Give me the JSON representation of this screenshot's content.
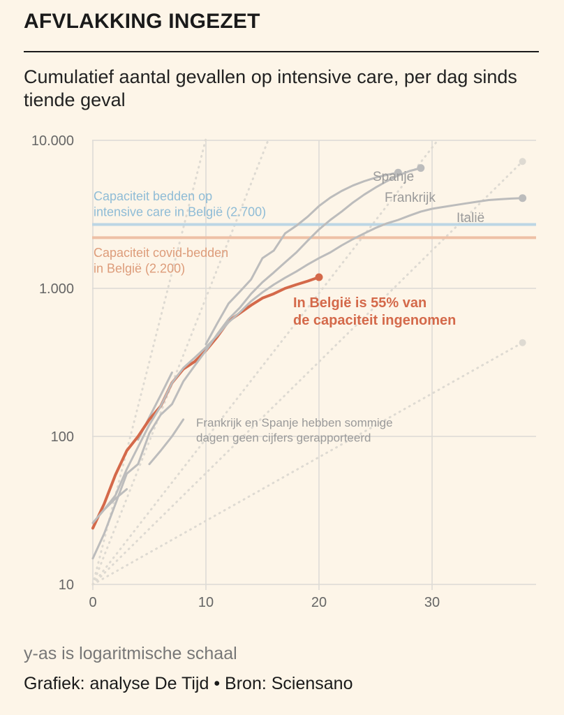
{
  "header": {
    "headline": "AFVLAKKING INGEZET",
    "subtitle": "Cumulatief aantal gevallen op intensive care, per dag sinds tiende geval"
  },
  "footer": {
    "note": "y-as is logaritmische schaal",
    "source": "Grafiek: analyse De Tijd • Bron: Sciensano"
  },
  "colors": {
    "background": "#fdf5e8",
    "belgium": "#d4694a",
    "comparison": "#bcbcbc",
    "doubling_lines": "#dedad2",
    "capacity_total": "#bcd6e4",
    "capacity_covid": "#eec0a6",
    "grid": "#dcdad5"
  },
  "chart_data": {
    "type": "line",
    "title": "AFVLAKKING INGEZET",
    "subtitle": "Cumulatief aantal gevallen op intensive care, per dag sinds tiende geval",
    "xlabel": "",
    "ylabel": "",
    "xlim": [
      0,
      39
    ],
    "ylim": [
      10,
      10000
    ],
    "y_scale": "log",
    "x_ticks": [
      0,
      10,
      20,
      30
    ],
    "y_ticks": [
      {
        "value": 10,
        "label": "10"
      },
      {
        "value": 100,
        "label": "100"
      },
      {
        "value": 1000,
        "label": "1.000"
      },
      {
        "value": 10000,
        "label": "10.000"
      }
    ],
    "grid": true,
    "series": [
      {
        "name": "In België",
        "highlight": true,
        "x": [
          0,
          1,
          2,
          3,
          4,
          5,
          6,
          7,
          8,
          9,
          10,
          11,
          12,
          13,
          14,
          15,
          16,
          17,
          18,
          19,
          20
        ],
        "y": [
          24,
          35,
          55,
          80,
          100,
          130,
          160,
          230,
          285,
          320,
          380,
          470,
          600,
          680,
          770,
          860,
          920,
          1000,
          1060,
          1120,
          1190
        ]
      },
      {
        "name": "Spanje",
        "x": [
          10,
          11,
          12,
          13,
          14,
          15,
          16,
          17,
          18,
          19,
          20,
          21,
          22,
          23,
          24,
          25,
          26,
          27
        ],
        "y": [
          420,
          580,
          790,
          950,
          1150,
          1600,
          1800,
          2350,
          2650,
          3050,
          3600,
          4100,
          4550,
          4950,
          5300,
          5600,
          5850,
          6050
        ]
      },
      {
        "name": "Frankrijk",
        "x": [
          0,
          1,
          2,
          3,
          4,
          5,
          6,
          7,
          8,
          9,
          10,
          11,
          12,
          13,
          14,
          15,
          16,
          17,
          18,
          19,
          20,
          21,
          22,
          23,
          24,
          25,
          26,
          27,
          28,
          29
        ],
        "y": [
          15,
          22,
          35,
          56,
          65,
          105,
          140,
          165,
          235,
          300,
          380,
          490,
          620,
          740,
          920,
          1100,
          1280,
          1500,
          1750,
          2100,
          2500,
          2900,
          3300,
          3800,
          4300,
          4800,
          5300,
          5800,
          6200,
          6500
        ]
      },
      {
        "name": "Italië",
        "x": [
          0,
          1,
          2,
          3,
          4,
          5,
          6,
          7,
          8,
          9,
          10,
          11,
          12,
          13,
          14,
          15,
          16,
          17,
          18,
          19,
          20,
          21,
          22,
          23,
          24,
          25,
          26,
          27,
          28,
          29,
          30,
          31,
          32,
          33,
          34,
          35,
          36,
          37,
          38
        ],
        "y": [
          26,
          32,
          40,
          60,
          85,
          120,
          160,
          230,
          290,
          340,
          400,
          480,
          590,
          690,
          820,
          940,
          1060,
          1180,
          1300,
          1450,
          1600,
          1750,
          1950,
          2150,
          2350,
          2560,
          2750,
          2900,
          3100,
          3300,
          3450,
          3550,
          3650,
          3750,
          3850,
          3950,
          4000,
          4040,
          4070
        ]
      }
    ],
    "fragments": [
      {
        "note": "Frankrijk en Spanje hebben sommige dagen geen cijfers gerapporteerd",
        "x": [
          0,
          1,
          2,
          3
        ],
        "y": [
          26,
          32,
          38,
          44
        ]
      },
      {
        "x": [
          5,
          6,
          7,
          8
        ],
        "y": [
          65,
          80,
          100,
          130
        ]
      },
      {
        "x": [
          4,
          5,
          6,
          7
        ],
        "y": [
          95,
          135,
          190,
          270
        ]
      }
    ],
    "reference_lines": [
      {
        "name": "Capaciteit bedden op intensive care in België (2.700)",
        "value": 2700
      },
      {
        "name": "Capaciteit covid-bedden in België (2.200)",
        "value": 2200
      }
    ],
    "doubling_lines": [
      {
        "x": [
          0,
          10
        ],
        "y": [
          10,
          10240
        ]
      },
      {
        "x": [
          0,
          15.5
        ],
        "y": [
          10,
          10000
        ]
      },
      {
        "x": [
          0,
          30.5
        ],
        "y": [
          10,
          10000
        ]
      },
      {
        "x": [
          0,
          38
        ],
        "y": [
          10,
          7200
        ]
      },
      {
        "x": [
          0,
          38
        ],
        "y": [
          10,
          430
        ]
      }
    ],
    "annotations": [
      {
        "text": "In België is 55% van de capaciteit ingenomen",
        "target": "In België"
      }
    ]
  }
}
